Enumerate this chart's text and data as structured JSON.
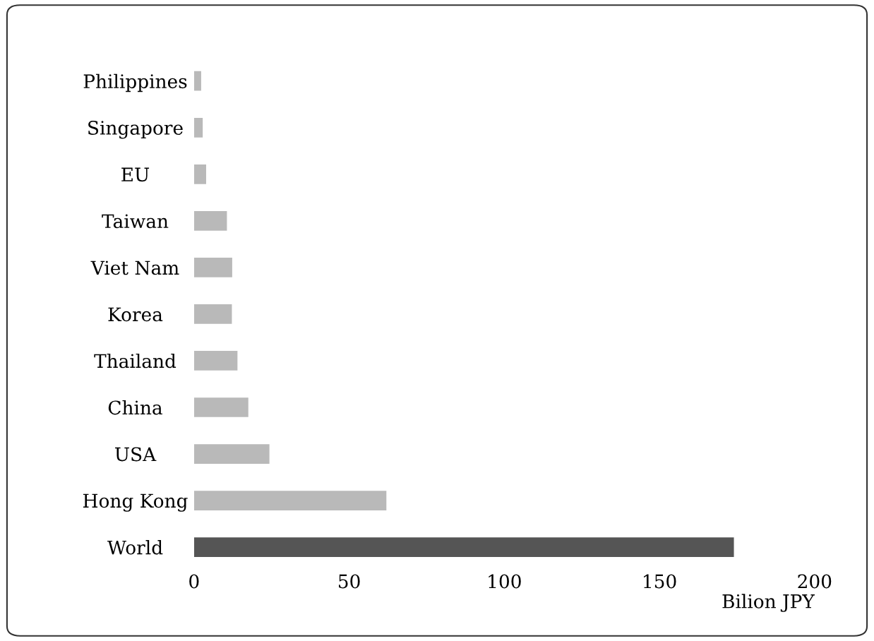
{
  "chart_data": {
    "type": "bar",
    "orientation": "horizontal",
    "categories": [
      "Philippines",
      "Singapore",
      "EU",
      "Taiwan",
      "Viet Nam",
      "Korea",
      "Thailand",
      "China",
      "USA",
      "Hong Kong",
      "World"
    ],
    "values": [
      2.3,
      2.8,
      3.9,
      10.6,
      12.3,
      12.2,
      14,
      17.5,
      24.3,
      62,
      174
    ],
    "colors": [
      "#b9b9b9",
      "#b9b9b9",
      "#b9b9b9",
      "#b9b9b9",
      "#b9b9b9",
      "#b9b9b9",
      "#b9b9b9",
      "#b9b9b9",
      "#b9b9b9",
      "#b9b9b9",
      "#555555"
    ],
    "xlim": [
      0,
      200
    ],
    "xticks": [
      0,
      50,
      100,
      150,
      200
    ],
    "xlabel": "Bilion JPY",
    "grid": false
  }
}
